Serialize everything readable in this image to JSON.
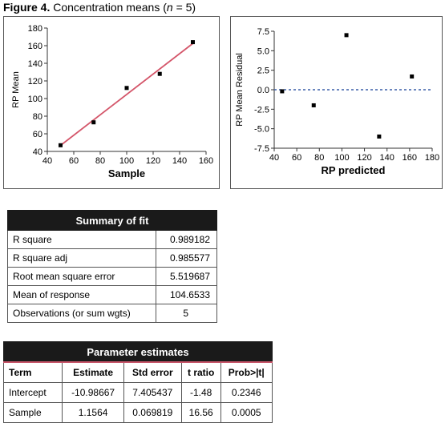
{
  "figure": {
    "label": "Figure 4.",
    "caption_before": "Concentration means (",
    "n_symbol": "n",
    "caption_after": " = 5)"
  },
  "colors": {
    "fit_line": "#d4566a",
    "residual_zero_line": "#3a5fa8",
    "header_bg": "#1a1a1a"
  },
  "chart_data": [
    {
      "type": "scatter",
      "xlabel": "Sample",
      "ylabel": "RP Mean",
      "xlim": [
        40,
        160
      ],
      "ylim": [
        40,
        180
      ],
      "xticks": [
        40,
        60,
        80,
        100,
        120,
        140,
        160
      ],
      "yticks": [
        40,
        60,
        80,
        100,
        120,
        140,
        160,
        180
      ],
      "points": [
        {
          "x": 50,
          "y": 47
        },
        {
          "x": 75,
          "y": 73
        },
        {
          "x": 100,
          "y": 112
        },
        {
          "x": 125,
          "y": 128
        },
        {
          "x": 150,
          "y": 164
        }
      ],
      "fit_line": {
        "x": [
          50,
          150
        ],
        "y": [
          46.8,
          162.5
        ]
      }
    },
    {
      "type": "scatter",
      "xlabel": "RP predicted",
      "ylabel": "RP Mean Residual",
      "xlim": [
        40,
        180
      ],
      "ylim": [
        -7.5,
        7.5
      ],
      "xticks": [
        40,
        60,
        80,
        100,
        120,
        140,
        160,
        180
      ],
      "yticks": [
        7.5,
        5.0,
        2.5,
        0.0,
        -2.5,
        -5.0,
        -7.5
      ],
      "ytick_labels": [
        "7.5",
        "5.0",
        "2.5",
        "0.0",
        "-2.5",
        "-5.0",
        "-7.5"
      ],
      "points": [
        {
          "x": 47,
          "y": -0.2
        },
        {
          "x": 75,
          "y": -2.0
        },
        {
          "x": 104,
          "y": 7.0
        },
        {
          "x": 133,
          "y": -6.0
        },
        {
          "x": 162,
          "y": 1.7
        }
      ],
      "reference_line_y": 0
    }
  ],
  "summary_of_fit": {
    "title": "Summary of fit",
    "rows": [
      {
        "label": "R square",
        "value": "0.989182"
      },
      {
        "label": "R square adj",
        "value": "0.985577"
      },
      {
        "label": "Root mean square error",
        "value": "5.519687"
      },
      {
        "label": "Mean of response",
        "value": "104.6533"
      },
      {
        "label": "Observations (or sum wgts)",
        "value": "5"
      }
    ]
  },
  "parameter_estimates": {
    "title": "Parameter estimates",
    "columns": [
      "Term",
      "Estimate",
      "Std error",
      "t ratio",
      "Prob>|t|"
    ],
    "rows": [
      [
        "Intercept",
        "-10.98667",
        "7.405437",
        "-1.48",
        "0.2346"
      ],
      [
        "Sample",
        "1.1564",
        "0.069819",
        "16.56",
        "0.0005"
      ]
    ]
  }
}
